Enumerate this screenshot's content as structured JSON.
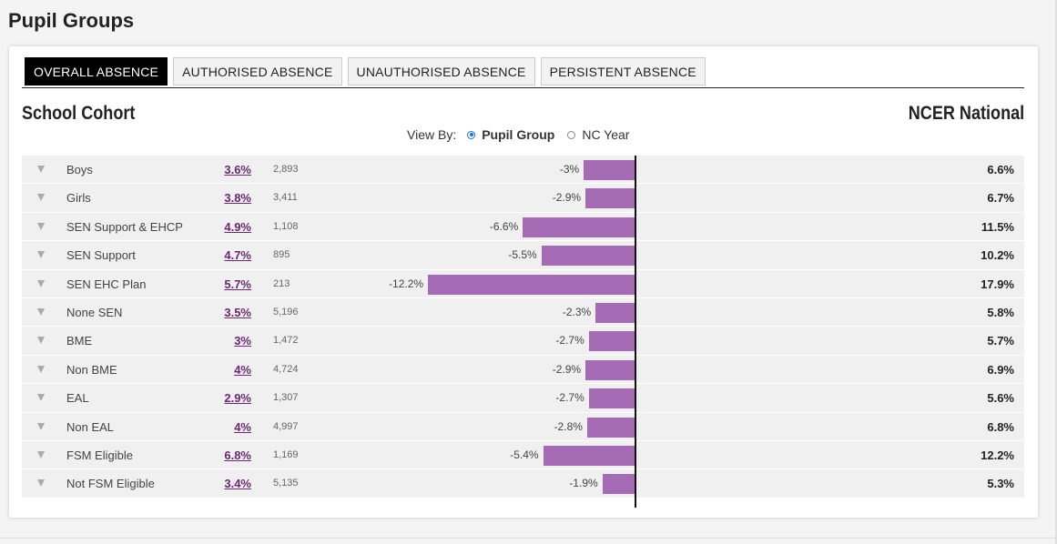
{
  "page": {
    "title": "Pupil Groups"
  },
  "tabs": [
    {
      "label": "OVERALL ABSENCE",
      "active": true
    },
    {
      "label": "AUTHORISED ABSENCE",
      "active": false
    },
    {
      "label": "UNAUTHORISED ABSENCE",
      "active": false
    },
    {
      "label": "PERSISTENT ABSENCE",
      "active": false
    }
  ],
  "headings": {
    "left": "School Cohort",
    "right": "NCER National"
  },
  "view_by": {
    "label": "View By:",
    "options": [
      {
        "label": "Pupil Group",
        "checked": true
      },
      {
        "label": "NC Year",
        "checked": false
      }
    ]
  },
  "colors": {
    "bar": "#a66bb5",
    "link": "#6b2873",
    "active_tab": "#000000",
    "radio": "#1a73e8"
  },
  "rows": [
    {
      "name": "Boys",
      "school": "3.6%",
      "count": "2,893",
      "diff_label": "-3%",
      "diff": -3.0,
      "national": "6.6%"
    },
    {
      "name": "Girls",
      "school": "3.8%",
      "count": "3,411",
      "diff_label": "-2.9%",
      "diff": -2.9,
      "national": "6.7%"
    },
    {
      "name": "SEN Support & EHCP",
      "school": "4.9%",
      "count": "1,108",
      "diff_label": "-6.6%",
      "diff": -6.6,
      "national": "11.5%"
    },
    {
      "name": "SEN Support",
      "school": "4.7%",
      "count": "895",
      "diff_label": "-5.5%",
      "diff": -5.5,
      "national": "10.2%"
    },
    {
      "name": "SEN EHC Plan",
      "school": "5.7%",
      "count": "213",
      "diff_label": "-12.2%",
      "diff": -12.2,
      "national": "17.9%"
    },
    {
      "name": "None SEN",
      "school": "3.5%",
      "count": "5,196",
      "diff_label": "-2.3%",
      "diff": -2.3,
      "national": "5.8%"
    },
    {
      "name": "BME",
      "school": "3%",
      "count": "1,472",
      "diff_label": "-2.7%",
      "diff": -2.7,
      "national": "5.7%"
    },
    {
      "name": "Non BME",
      "school": "4%",
      "count": "4,724",
      "diff_label": "-2.9%",
      "diff": -2.9,
      "national": "6.9%"
    },
    {
      "name": "EAL",
      "school": "2.9%",
      "count": "1,307",
      "diff_label": "-2.7%",
      "diff": -2.7,
      "national": "5.6%"
    },
    {
      "name": "Non EAL",
      "school": "4%",
      "count": "4,997",
      "diff_label": "-2.8%",
      "diff": -2.8,
      "national": "6.8%"
    },
    {
      "name": "FSM Eligible",
      "school": "6.8%",
      "count": "1,169",
      "diff_label": "-5.4%",
      "diff": -5.4,
      "national": "12.2%"
    },
    {
      "name": "Not FSM Eligible",
      "school": "3.4%",
      "count": "5,135",
      "diff_label": "-1.9%",
      "diff": -1.9,
      "national": "5.3%"
    }
  ]
}
